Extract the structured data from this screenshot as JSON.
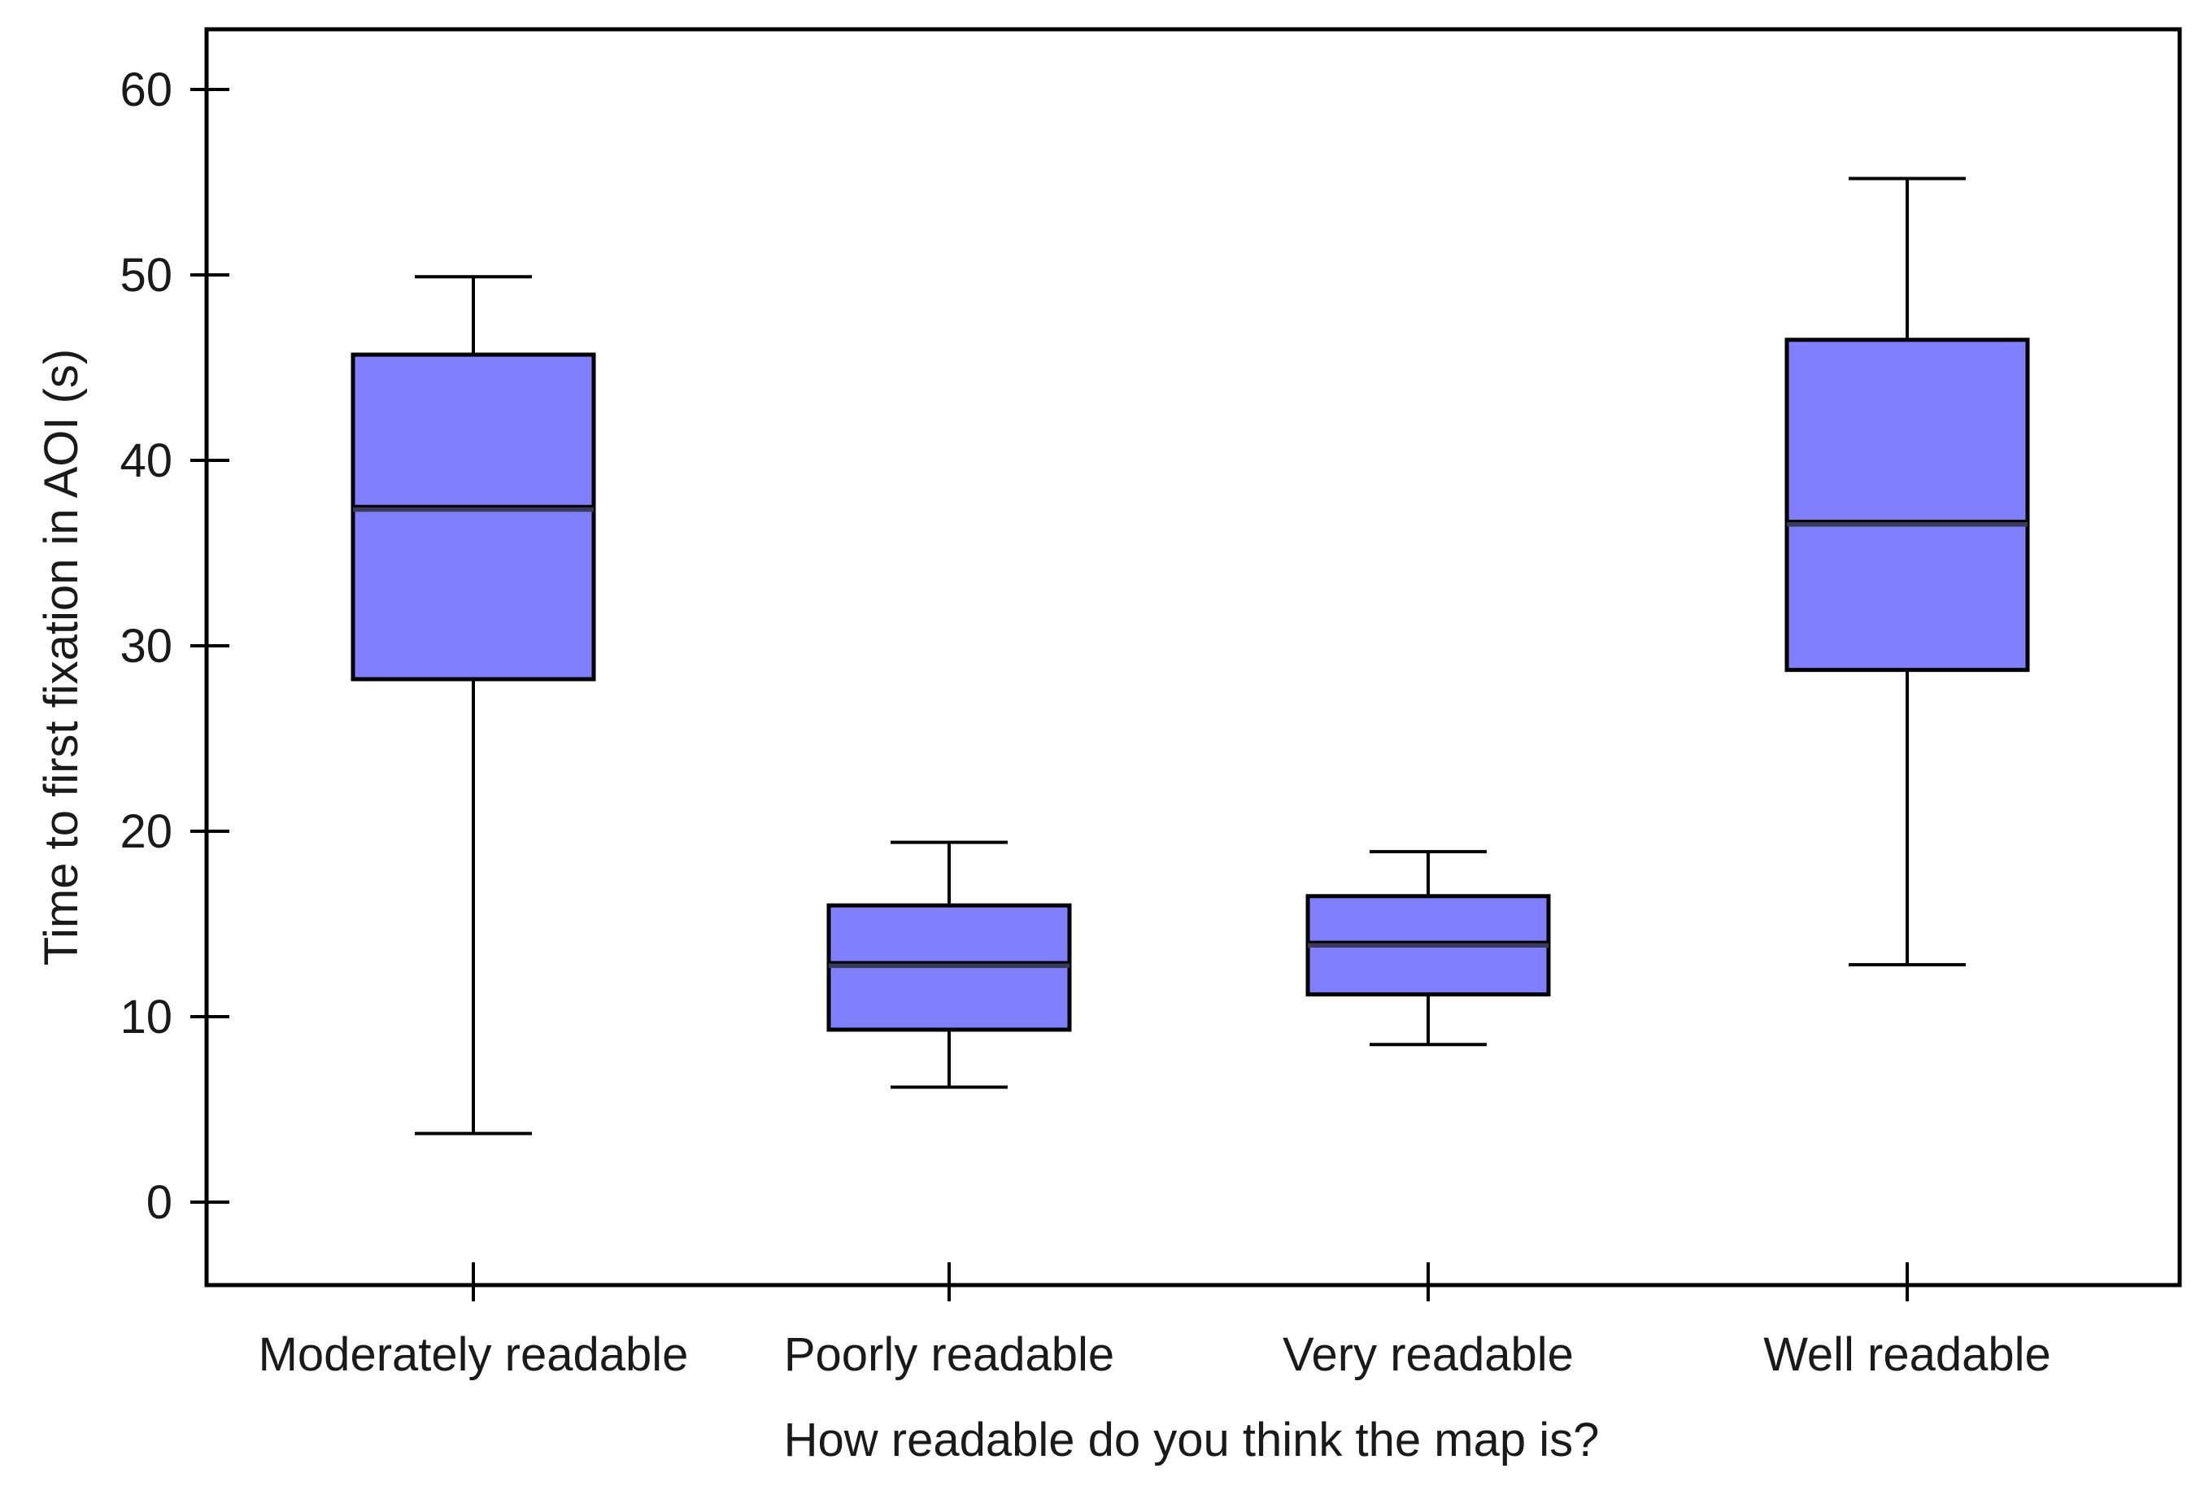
{
  "chart_data": {
    "type": "boxplot",
    "title": "",
    "xlabel": "How readable do you think the map is?",
    "ylabel": "Time to first fixation in AOI (s)",
    "ylim": [
      -4.5,
      63.2
    ],
    "yticks": [
      0,
      10,
      20,
      30,
      40,
      50,
      60
    ],
    "ytick_labels": [
      "0",
      "10",
      "20",
      "30",
      "40",
      "50",
      "60"
    ],
    "grid": false,
    "categories": [
      "Moderately readable",
      "Poorly readable",
      "Very readable",
      "Well readable"
    ],
    "boxes": [
      {
        "category": "Moderately readable",
        "whisker_low": 3.7,
        "q1": 28.2,
        "median": 37.4,
        "q3": 45.7,
        "whisker_high": 49.9
      },
      {
        "category": "Poorly readable",
        "whisker_low": 6.2,
        "q1": 9.3,
        "median": 12.8,
        "q3": 16.0,
        "whisker_high": 19.4
      },
      {
        "category": "Very readable",
        "whisker_low": 8.5,
        "q1": 11.2,
        "median": 13.9,
        "q3": 16.5,
        "whisker_high": 18.9
      },
      {
        "category": "Well readable",
        "whisker_low": 12.8,
        "q1": 28.7,
        "median": 36.6,
        "q3": 46.5,
        "whisker_high": 55.2
      }
    ],
    "colors": {
      "box_fill": "#8080ff",
      "median": "#3a3a5a",
      "tick_label": "#1a1a1a"
    }
  }
}
